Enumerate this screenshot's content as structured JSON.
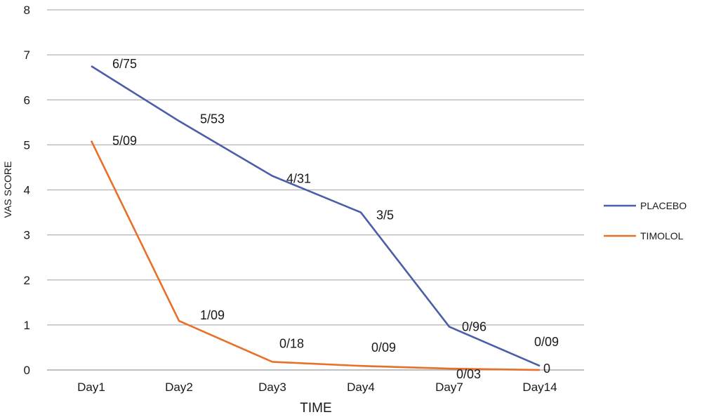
{
  "chart_data": {
    "type": "line",
    "title": "",
    "xlabel": "TIME",
    "ylabel": "VAS SCORE",
    "categories": [
      "Day1",
      "Day2",
      "Day3",
      "Day4",
      "Day7",
      "Day14"
    ],
    "ylim": [
      0,
      8
    ],
    "yticks": [
      "0",
      "1",
      "2",
      "3",
      "4",
      "5",
      "6",
      "7",
      "8"
    ],
    "grid": true,
    "legend_position": "right",
    "series": [
      {
        "name": "PLACEBO",
        "color": "#4a5fa8",
        "values": [
          6.75,
          5.53,
          4.31,
          3.5,
          0.96,
          0.09
        ],
        "labels": [
          "6/75",
          "5/53",
          "4/31",
          "3/5",
          "0/96",
          "0/09"
        ]
      },
      {
        "name": "TIMOLOL",
        "color": "#e8702a",
        "values": [
          5.09,
          1.09,
          0.18,
          0.09,
          0.03,
          0
        ],
        "labels": [
          "5/09",
          "1/09",
          "0/18",
          "0/09",
          "0/03",
          "0"
        ]
      }
    ]
  }
}
